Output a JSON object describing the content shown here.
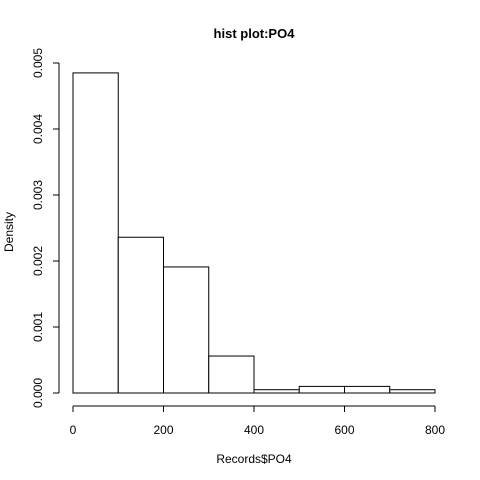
{
  "chart_data": {
    "type": "bar",
    "title": "hist plot:PO4",
    "xlabel": "Records$PO4",
    "ylabel": "Density",
    "bins": [
      {
        "start": 0,
        "end": 100,
        "value": 0.00485
      },
      {
        "start": 100,
        "end": 200,
        "value": 0.00236
      },
      {
        "start": 200,
        "end": 300,
        "value": 0.00191
      },
      {
        "start": 300,
        "end": 400,
        "value": 0.00056
      },
      {
        "start": 400,
        "end": 500,
        "value": 5e-05
      },
      {
        "start": 500,
        "end": 600,
        "value": 0.0001
      },
      {
        "start": 600,
        "end": 700,
        "value": 0.0001
      },
      {
        "start": 700,
        "end": 800,
        "value": 5e-05
      }
    ],
    "xlim": [
      0,
      800
    ],
    "ylim": [
      0,
      0.005
    ],
    "xticks": [
      0,
      200,
      400,
      600,
      800
    ],
    "xtick_labels": [
      "0",
      "200",
      "400",
      "600",
      "800"
    ],
    "yticks": [
      0,
      0.001,
      0.002,
      0.003,
      0.004,
      0.005
    ],
    "ytick_labels": [
      "0.000",
      "0.001",
      "0.002",
      "0.003",
      "0.004",
      "0.005"
    ],
    "grid": false,
    "bar_fill": "#ffffff",
    "bar_stroke": "#000000"
  }
}
